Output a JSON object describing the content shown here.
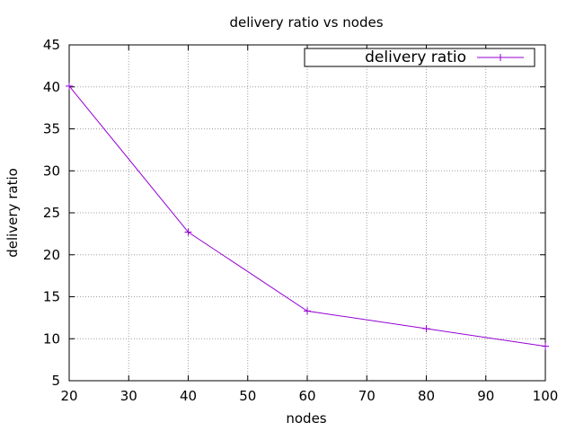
{
  "chart_data": {
    "type": "line",
    "title": "delivery ratio vs nodes",
    "xlabel": "nodes",
    "ylabel": "delivery ratio",
    "xlim": [
      20,
      100
    ],
    "ylim": [
      5,
      45
    ],
    "xticks": [
      20,
      30,
      40,
      50,
      60,
      70,
      80,
      90,
      100
    ],
    "yticks": [
      5,
      10,
      15,
      20,
      25,
      30,
      35,
      40,
      45
    ],
    "grid": true,
    "legend_position": "top-right",
    "series": [
      {
        "name": "delivery ratio",
        "color": "#9400d3",
        "marker": "plus",
        "x": [
          20,
          40,
          60,
          80,
          100
        ],
        "y": [
          40.1,
          22.7,
          13.3,
          11.2,
          9.1
        ]
      }
    ]
  }
}
